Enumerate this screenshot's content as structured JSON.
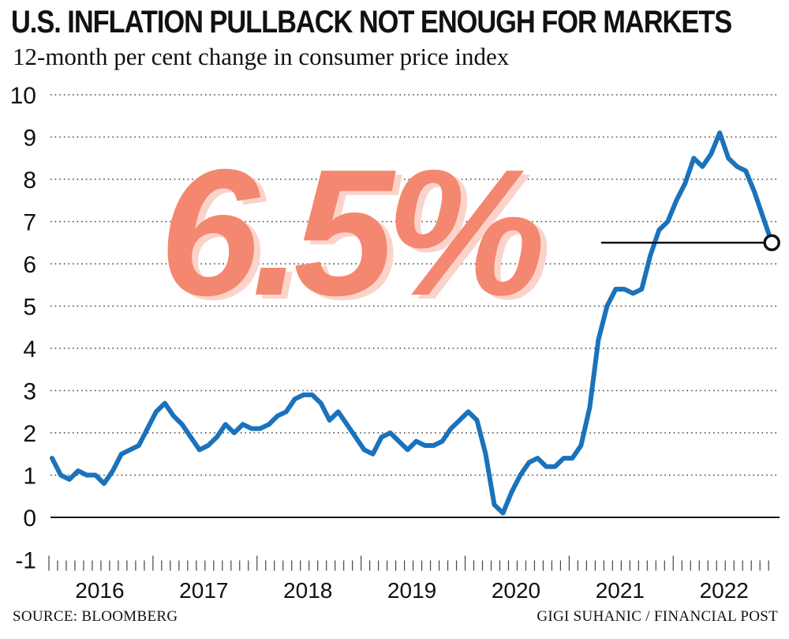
{
  "chart_data": {
    "type": "line",
    "title": "U.S. INFLATION PULLBACK NOT ENOUGH FOR MARKETS",
    "subtitle": "12-month per cent change in consumer price index",
    "ylim": [
      -1,
      10
    ],
    "y_ticks": [
      "-1",
      "0",
      "1",
      "2",
      "3",
      "4",
      "5",
      "6",
      "7",
      "8",
      "9",
      "10"
    ],
    "x_ticks": [
      "2016",
      "2017",
      "2018",
      "2019",
      "2020",
      "2021",
      "2022"
    ],
    "x_start": "2016-01",
    "grid": true,
    "line_color": "#1a72bb",
    "highlight_color": "#f4876f",
    "highlight_shadow_color": "#fbd3ca",
    "callout": {
      "label": "6.5%",
      "value": 6.5,
      "date": "2022-12"
    },
    "series": [
      {
        "values": [
          1.4,
          1.0,
          0.9,
          1.1,
          1.0,
          1.0,
          0.8,
          1.1,
          1.5,
          1.6,
          1.7,
          2.1,
          2.5,
          2.7,
          2.4,
          2.2,
          1.9,
          1.6,
          1.7,
          1.9,
          2.2,
          2.0,
          2.2,
          2.1,
          2.1,
          2.2,
          2.4,
          2.5,
          2.8,
          2.9,
          2.9,
          2.7,
          2.3,
          2.5,
          2.2,
          1.9,
          1.6,
          1.5,
          1.9,
          2.0,
          1.8,
          1.6,
          1.8,
          1.7,
          1.7,
          1.8,
          2.1,
          2.3,
          2.5,
          2.3,
          1.5,
          0.3,
          0.1,
          0.6,
          1.0,
          1.3,
          1.4,
          1.2,
          1.2,
          1.4,
          1.4,
          1.7,
          2.6,
          4.2,
          5.0,
          5.4,
          5.4,
          5.3,
          5.4,
          6.2,
          6.8,
          7.0,
          7.5,
          7.9,
          8.5,
          8.3,
          8.6,
          9.1,
          8.5,
          8.3,
          8.2,
          7.7,
          7.1,
          6.5
        ]
      }
    ]
  },
  "footer": {
    "source": "SOURCE: BLOOMBERG",
    "credit": "GIGI SUHANIC / FINANCIAL POST"
  }
}
